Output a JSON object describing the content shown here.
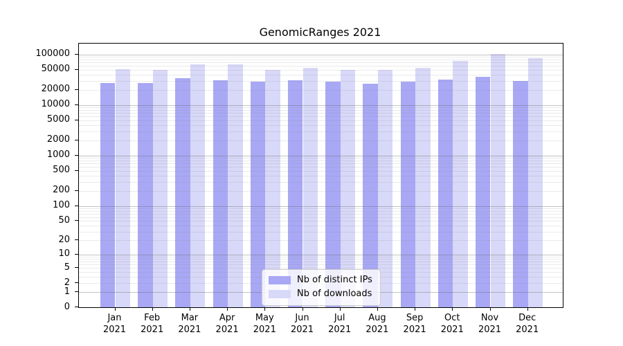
{
  "figure": {
    "background": "#ffffff"
  },
  "chart_data": {
    "type": "bar",
    "title": "GenomicRanges 2021",
    "categories": [
      {
        "line1": "Jan",
        "line2": "2021"
      },
      {
        "line1": "Feb",
        "line2": "2021"
      },
      {
        "line1": "Mar",
        "line2": "2021"
      },
      {
        "line1": "Apr",
        "line2": "2021"
      },
      {
        "line1": "May",
        "line2": "2021"
      },
      {
        "line1": "Jun",
        "line2": "2021"
      },
      {
        "line1": "Jul",
        "line2": "2021"
      },
      {
        "line1": "Aug",
        "line2": "2021"
      },
      {
        "line1": "Sep",
        "line2": "2021"
      },
      {
        "line1": "Oct",
        "line2": "2021"
      },
      {
        "line1": "Nov",
        "line2": "2021"
      },
      {
        "line1": "Dec",
        "line2": "2021"
      }
    ],
    "series": [
      {
        "name": "Nb of distinct IPs",
        "color": "#a8a8f5",
        "values": [
          27000,
          27000,
          33600,
          30700,
          28800,
          30700,
          28800,
          26200,
          28800,
          31600,
          35900,
          29700
        ]
      },
      {
        "name": "Nb of downloads",
        "color": "#d8d8f8",
        "values": [
          50800,
          49200,
          63400,
          63400,
          49200,
          54100,
          49200,
          49200,
          54100,
          74100,
          101000,
          84100
        ]
      }
    ],
    "y_axis": {
      "ticks": [
        0,
        1,
        2,
        5,
        10,
        20,
        50,
        100,
        200,
        500,
        1000,
        2000,
        5000,
        10000,
        20000,
        50000,
        100000
      ],
      "scale": "log10(1+value)",
      "ylim": [
        0,
        163000
      ]
    },
    "x_axis": {
      "tick_count": 12
    },
    "legend": {
      "position": "inside-bottom-center"
    },
    "grid": {
      "horizontal": true,
      "minor_color": "#e6e6e6",
      "major_color": "#b3b3b3"
    }
  }
}
